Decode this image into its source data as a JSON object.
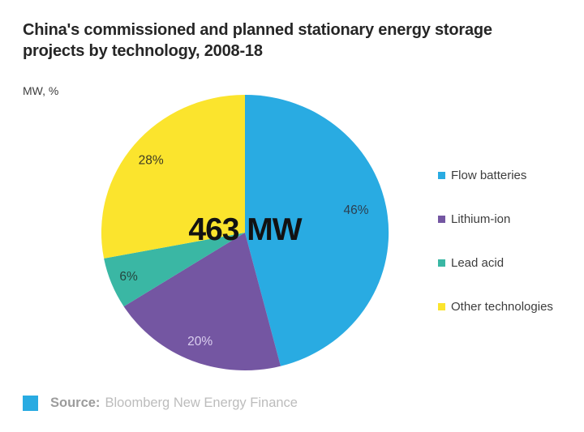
{
  "brand_color": "#29abe2",
  "source": {
    "prefix": "Source:",
    "text": "Bloomberg New Energy Finance"
  },
  "chart_data": {
    "type": "pie",
    "title": "China's commissioned and planned stationary energy storage projects by technology, 2008-18",
    "unit_label": "MW, %",
    "total_label": "463 MW",
    "total_value_mw": 463,
    "start_angle": "12 o'clock",
    "direction": "clockwise",
    "legend_position": "right",
    "slices": [
      {
        "label": "Flow batteries",
        "pct": 46,
        "color": "#29abe2",
        "pct_label": "46%",
        "pct_label_color": "#2c3f50"
      },
      {
        "label": "Lithium-ion",
        "pct": 20,
        "color": "#7456a2",
        "pct_label": "20%",
        "pct_label_color": "#dbcfef"
      },
      {
        "label": "Lead acid",
        "pct": 6,
        "color": "#3ab7a4",
        "pct_label": "6%",
        "pct_label_color": "#24453d"
      },
      {
        "label": "Other technologies",
        "pct": 28,
        "color": "#fbe42d",
        "pct_label": "28%",
        "pct_label_color": "#3c3a24"
      }
    ]
  }
}
